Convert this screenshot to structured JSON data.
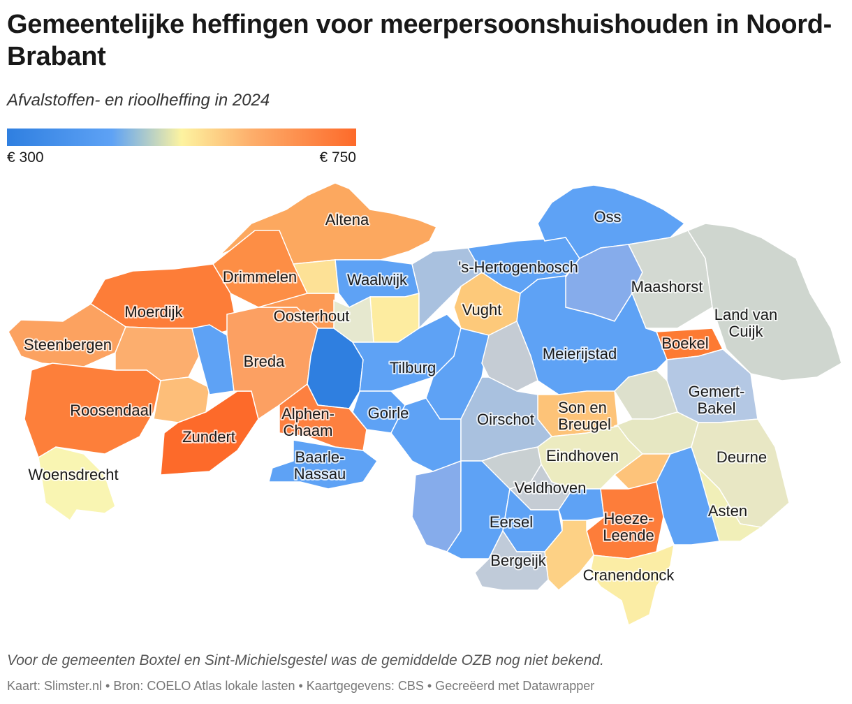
{
  "header": {
    "title": "Gemeentelijke heffingen voor meerpersoonshuishouden in Noord-Brabant",
    "subtitle": "Afvalstoffen- en rioolheffing in 2024"
  },
  "legend": {
    "min_label": "€ 300",
    "max_label": "€ 750",
    "colors": [
      "#2f7fe0",
      "#5ea2f5",
      "#fdf3a0",
      "#fdae6b",
      "#fd6a2a"
    ]
  },
  "map": {
    "labels": {
      "altena": "Altena",
      "oss": "Oss",
      "drimmelen": "Drimmelen",
      "waalwijk": "Waalwijk",
      "hertogenbosch": "'s-Hertogenbosch",
      "moerdijk": "Moerdijk",
      "oosterhout": "Oosterhout",
      "vught": "Vught",
      "maashorst": "Maashorst",
      "landvancuijk_1": "Land van",
      "landvancuijk_2": "Cuijk",
      "steenbergen": "Steenbergen",
      "breda": "Breda",
      "tilburg": "Tilburg",
      "meierijstad": "Meierijstad",
      "boekel": "Boekel",
      "roosendaal": "Roosendaal",
      "alphen_1": "Alphen-",
      "alphen_2": "Chaam",
      "goirle": "Goirle",
      "oirschot": "Oirschot",
      "son_1": "Son en",
      "son_2": "Breugel",
      "gemert_1": "Gemert-",
      "gemert_2": "Bakel",
      "zundert": "Zundert",
      "eindhoven": "Eindhoven",
      "deurne": "Deurne",
      "baarle_1": "Baarle-",
      "baarle_2": "Nassau",
      "woensdrecht": "Woensdrecht",
      "veldhoven": "Veldhoven",
      "asten": "Asten",
      "eersel": "Eersel",
      "heeze_1": "Heeze-",
      "heeze_2": "Leende",
      "bergeijk": "Bergeijk",
      "cranendonck": "Cranendonck"
    }
  },
  "footer": {
    "note": "Voor de gemeenten Boxtel en Sint-Michielsgestel was de gemiddelde OZB nog niet bekend.",
    "source": "Kaart: Slimster.nl • Bron: COELO Atlas lokale lasten • Kaartgegevens: CBS • Gecreëerd met Datawrapper"
  }
}
